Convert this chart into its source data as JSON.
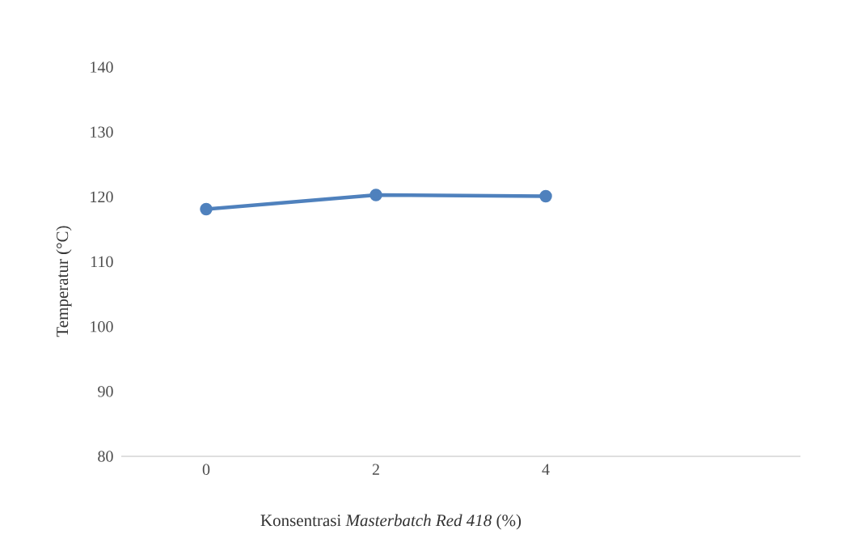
{
  "chart_data": {
    "type": "line",
    "xlabel": "Konsentrasi *Masterbatch Red 418* (%)",
    "ylabel": "Temperatur (°C)",
    "categories": [
      "0",
      "2",
      "4",
      null
    ],
    "series": [
      {
        "color": "#4f81bd",
        "values": [
          118.1,
          120.3,
          120.1,
          null
        ]
      }
    ],
    "ylim": [
      80,
      140
    ],
    "yticks": [
      80,
      90,
      100,
      110,
      120,
      130,
      140
    ],
    "grid": false,
    "marker": "circle",
    "line_style": "solid"
  }
}
